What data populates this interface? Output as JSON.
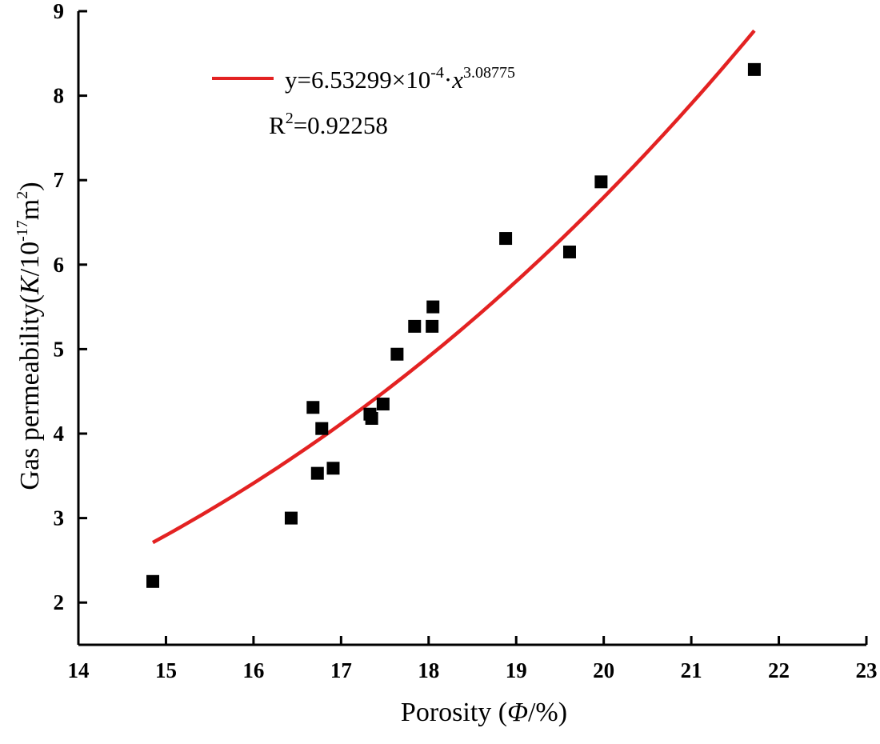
{
  "chart_data": {
    "type": "scatter",
    "xlabel_prefix": "Porosity (",
    "xlabel_symbol": "Φ",
    "xlabel_suffix": "/%)",
    "ylabel_prefix": "Gas permeability(",
    "ylabel_symbol": "K",
    "ylabel_unit_base": "/10",
    "ylabel_unit_exp": "-17",
    "ylabel_unit_m": "m",
    "ylabel_unit_m_exp": "2",
    "ylabel_close": ")",
    "xlim": [
      14,
      23
    ],
    "ylim": [
      1.5,
      9
    ],
    "xticks": [
      14,
      15,
      16,
      17,
      18,
      19,
      20,
      21,
      22,
      23
    ],
    "yticks": [
      2,
      3,
      4,
      5,
      6,
      7,
      8,
      9
    ],
    "points": [
      {
        "x": 14.85,
        "y": 2.25
      },
      {
        "x": 16.43,
        "y": 3.0
      },
      {
        "x": 16.68,
        "y": 4.31
      },
      {
        "x": 16.73,
        "y": 3.53
      },
      {
        "x": 16.78,
        "y": 4.06
      },
      {
        "x": 16.91,
        "y": 3.59
      },
      {
        "x": 17.33,
        "y": 4.23
      },
      {
        "x": 17.35,
        "y": 4.18
      },
      {
        "x": 17.48,
        "y": 4.35
      },
      {
        "x": 17.64,
        "y": 4.94
      },
      {
        "x": 17.84,
        "y": 5.27
      },
      {
        "x": 18.04,
        "y": 5.27
      },
      {
        "x": 18.05,
        "y": 5.5
      },
      {
        "x": 18.88,
        "y": 6.31
      },
      {
        "x": 19.61,
        "y": 6.15
      },
      {
        "x": 19.97,
        "y": 6.98
      },
      {
        "x": 21.72,
        "y": 8.31
      }
    ],
    "fit": {
      "type": "power",
      "a": 0.000653299,
      "b": 3.08775,
      "x_range": [
        14.85,
        21.72
      ],
      "color": "#e32222",
      "equation_prefix": "y=6.53299×10",
      "equation_exp1": "-4",
      "equation_mid": "·",
      "equation_x": "x",
      "equation_exp2": "3.08775",
      "r2_label": "R",
      "r2_exp": "2",
      "r2_value": "=0.92258"
    },
    "marker_color": "#000000",
    "legend_position": "top-left"
  }
}
